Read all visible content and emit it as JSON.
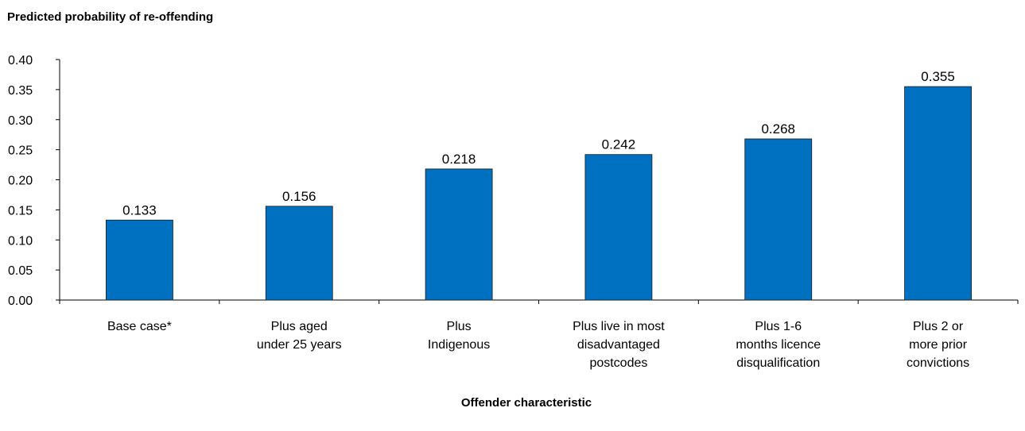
{
  "chart_data": {
    "type": "bar",
    "ylabel": "Predicted probability of re-offending",
    "xlabel": "Offender characteristic",
    "categories": [
      [
        "Base case*"
      ],
      [
        "Plus aged",
        "under 25 years"
      ],
      [
        "Plus",
        "Indigenous"
      ],
      [
        "Plus live in most",
        "disadvantaged",
        "postcodes"
      ],
      [
        "Plus 1-6",
        "months licence",
        "disqualification"
      ],
      [
        "Plus 2 or",
        "more prior",
        "convictions"
      ]
    ],
    "values": [
      0.133,
      0.156,
      0.218,
      0.242,
      0.268,
      0.355
    ],
    "value_labels": [
      "0.133",
      "0.156",
      "0.218",
      "0.242",
      "0.268",
      "0.355"
    ],
    "ylim": [
      0,
      0.4
    ],
    "yticks": [
      "0.00",
      "0.05",
      "0.10",
      "0.15",
      "0.20",
      "0.25",
      "0.30",
      "0.35",
      "0.40"
    ],
    "bar_color": "#0070C0",
    "grid": false
  }
}
